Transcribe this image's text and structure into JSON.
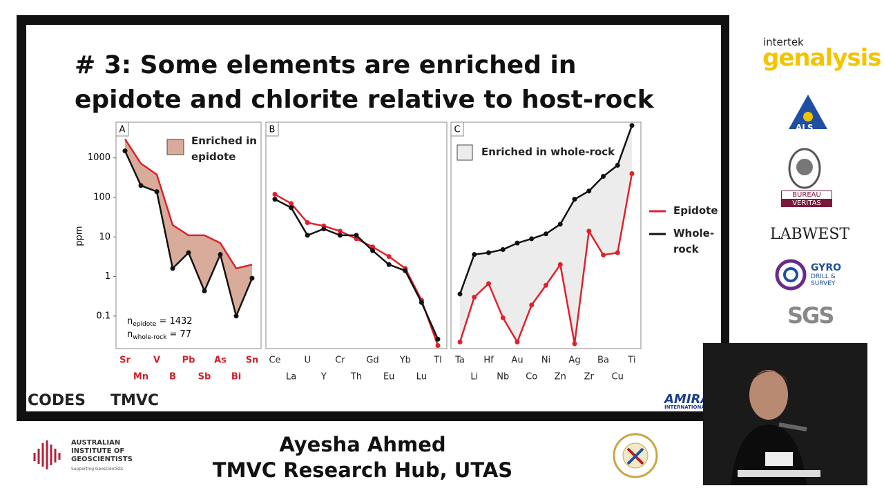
{
  "slide": {
    "title": "# 3: Some elements are enriched in epidote and chlorite relative to host-rock",
    "codes": "CODES",
    "tmvc": "TMVC",
    "amira": "AMIRA",
    "amira_sub": "INTERNATIONAL"
  },
  "sponsors": {
    "intertek": "intertek",
    "genalysis": "genalysis",
    "als": "ALS",
    "bv_top": "BUREAU",
    "bv_bottom": "VERITAS",
    "labwest": "LABWEST",
    "gyro": "GYRO",
    "gyro_sub": "DRILL & SURVEY",
    "sgs": "SGS"
  },
  "aig": {
    "name": "AUSTRALIAN INSTITUTE OF GEOSCIENTISTS",
    "tagline": "Supporting Geoscientists"
  },
  "caption": {
    "speaker": "Ayesha Ahmed",
    "affiliation": "TMVC Research Hub, UTAS"
  },
  "chart_data": [
    {
      "type": "line",
      "panel": "A",
      "ylabel": "ppm",
      "log": true,
      "ylim": [
        0.015,
        8000
      ],
      "yticks": [
        0.1,
        1,
        10,
        100,
        1000
      ],
      "category_color": "#d0202a",
      "categories": [
        "Sr",
        "Mn",
        "V",
        "B",
        "Pb",
        "Sb",
        "As",
        "Bi",
        "Sn"
      ],
      "fill": "#d9ab9b",
      "annotation": "Enriched in epidote",
      "sample_sizes": [
        {
          "symbol": "n",
          "subscript": "epidote",
          "text": " = 1432"
        },
        {
          "symbol": "n",
          "subscript": "whole-rock",
          "text": " = 77"
        }
      ],
      "series": [
        {
          "color": "#e0202a",
          "markers": false,
          "values": [
            3000,
            720,
            380,
            20,
            11,
            11,
            7,
            1.6,
            2
          ]
        },
        {
          "color": "#111111",
          "markers": true,
          "values": [
            1500,
            200,
            140,
            1.6,
            4,
            0.43,
            3.6,
            0.1,
            0.9
          ]
        }
      ]
    },
    {
      "type": "line",
      "panel": "B",
      "log": true,
      "ylim": [
        0.015,
        8000
      ],
      "category_color": "#222222",
      "categories": [
        "Ce",
        "La",
        "U",
        "Y",
        "Cr",
        "Th",
        "Gd",
        "Eu",
        "Yb",
        "Lu",
        "Tl"
      ],
      "series": [
        {
          "color": "#e0202a",
          "markers": true,
          "values": [
            120,
            70,
            23,
            19,
            14,
            9,
            5.6,
            3.2,
            1.6,
            0.25,
            0.018
          ]
        },
        {
          "color": "#111111",
          "markers": true,
          "values": [
            90,
            55,
            11,
            16,
            11,
            11,
            4.5,
            2,
            1.4,
            0.22,
            0.026
          ]
        }
      ]
    },
    {
      "type": "line",
      "panel": "C",
      "log": true,
      "ylim": [
        0.015,
        8000
      ],
      "category_color": "#222222",
      "categories": [
        "Ta",
        "Li",
        "Hf",
        "Nb",
        "Au",
        "Co",
        "Ni",
        "Zn",
        "Ag",
        "Zr",
        "Ba",
        "Cu",
        "Ti"
      ],
      "fill": "#ececec",
      "annotation": "Enriched in whole-rock",
      "legend": "right",
      "series": [
        {
          "name": "Epidote",
          "color": "#e0202a",
          "markers": true,
          "values": [
            0.022,
            0.3,
            0.66,
            0.09,
            0.022,
            0.19,
            0.6,
            2,
            0.02,
            14,
            3.5,
            4,
            400
          ]
        },
        {
          "name": "Whole-rock",
          "color": "#111111",
          "markers": true,
          "values": [
            0.36,
            3.6,
            4,
            4.8,
            7,
            9,
            12,
            21,
            90,
            145,
            340,
            650,
            6600
          ]
        }
      ]
    }
  ]
}
